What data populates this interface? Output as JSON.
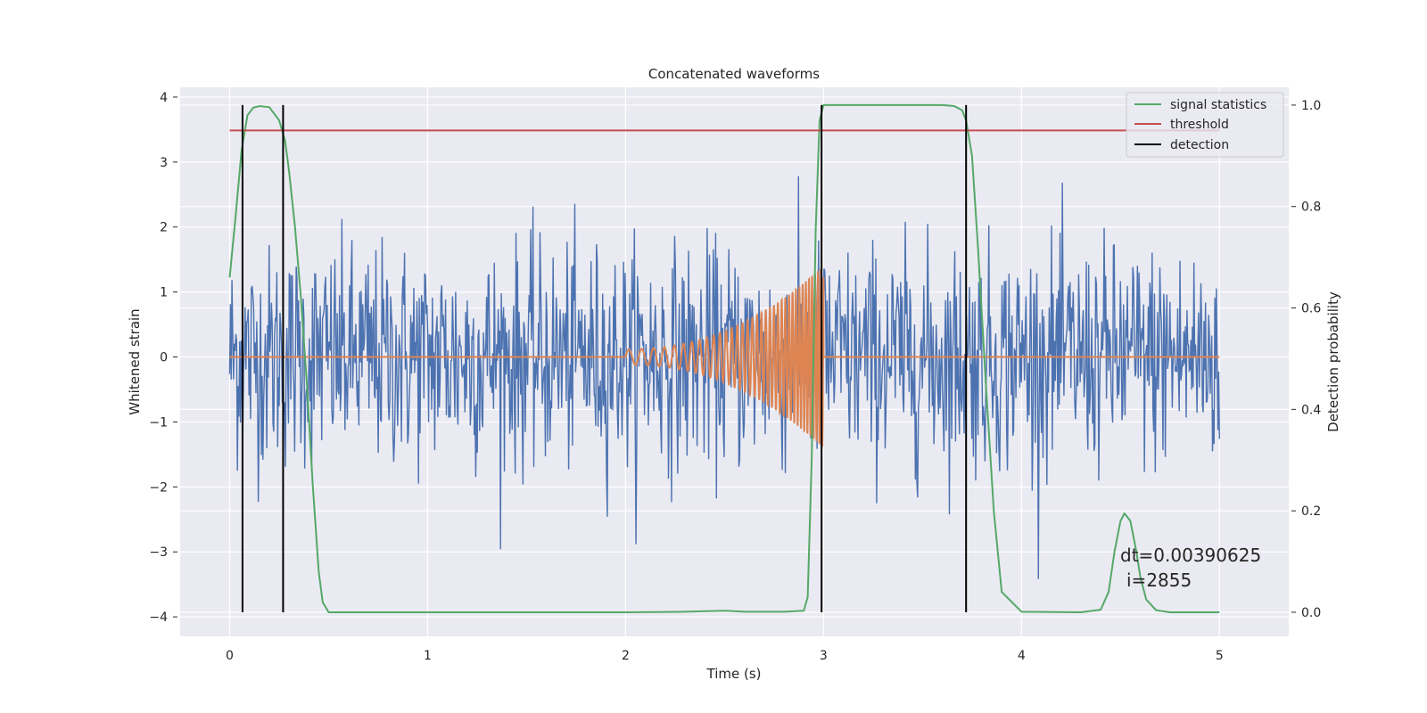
{
  "chart_data": {
    "type": "line",
    "title": "Concatenated waveforms",
    "xlabel": "Time (s)",
    "ylabel": "Whitened strain",
    "y2label": "Detection probability",
    "xlim": [
      -0.25,
      5.35
    ],
    "ylim": [
      -4.3,
      4.15
    ],
    "y2lim": [
      -0.0475,
      1.035
    ],
    "xticks": [
      "0",
      "1",
      "2",
      "3",
      "4",
      "5"
    ],
    "yticks": [
      "4",
      "3",
      "2",
      "1",
      "0",
      "−1",
      "−2",
      "−3",
      "−4"
    ],
    "y2ticks": [
      "1.0",
      "0.8",
      "0.6",
      "0.4",
      "0.2",
      "0.0"
    ],
    "grid": true,
    "legend_position": "top-right",
    "series": [
      {
        "name": "signal statistics",
        "color": "#55a868",
        "axis": "right",
        "x": [
          0,
          0.03,
          0.06,
          0.09,
          0.12,
          0.15,
          0.2,
          0.25,
          0.28,
          0.3,
          0.33,
          0.36,
          0.39,
          0.42,
          0.45,
          0.47,
          0.5,
          0.6,
          1.0,
          1.5,
          2.0,
          2.3,
          2.5,
          2.6,
          2.8,
          2.9,
          2.92,
          2.94,
          2.96,
          2.98,
          3.0,
          3.2,
          3.4,
          3.6,
          3.66,
          3.7,
          3.72,
          3.75,
          3.78,
          3.82,
          3.86,
          3.9,
          4.0,
          4.3,
          4.4,
          4.44,
          4.47,
          4.5,
          4.52,
          4.55,
          4.58,
          4.6,
          4.63,
          4.68,
          4.75,
          5.0
        ],
        "y": [
          0.66,
          0.78,
          0.91,
          0.98,
          0.995,
          0.998,
          0.996,
          0.97,
          0.93,
          0.87,
          0.76,
          0.62,
          0.45,
          0.25,
          0.08,
          0.02,
          0.0,
          0.0,
          0.0,
          0.0,
          0.0,
          0.001,
          0.003,
          0.001,
          0.001,
          0.003,
          0.03,
          0.3,
          0.75,
          0.97,
          1.0,
          1.0,
          1.0,
          1.0,
          0.998,
          0.99,
          0.97,
          0.9,
          0.72,
          0.45,
          0.2,
          0.04,
          0.001,
          0.0,
          0.005,
          0.04,
          0.12,
          0.18,
          0.195,
          0.18,
          0.12,
          0.07,
          0.025,
          0.004,
          0.0,
          0.0
        ]
      },
      {
        "name": "threshold",
        "color": "#c44e52",
        "axis": "right",
        "x": [
          0,
          5
        ],
        "y": [
          0.95,
          0.95
        ]
      },
      {
        "name": "detection",
        "color": "#000000",
        "axis": "right",
        "type": "vlines",
        "x": [
          0.065,
          0.27,
          2.99,
          3.72
        ],
        "ymin": 0.0,
        "ymax": 1.0
      }
    ],
    "strain_noise": {
      "color": "#4c72b0",
      "axis": "left",
      "x_range": [
        0,
        5
      ],
      "samples": 1280,
      "sigma": 0.85,
      "y_range": [
        -3.9,
        3.8
      ]
    },
    "injected_waveform": {
      "color": "#dd8452",
      "axis": "left",
      "start": 2.0,
      "end": 3.0,
      "amplitude_start": 0.12,
      "amplitude_end": 1.4,
      "frequency_start": 15,
      "frequency_end": 70
    },
    "annotations": [
      "dt=0.00390625",
      "i=2855"
    ]
  }
}
